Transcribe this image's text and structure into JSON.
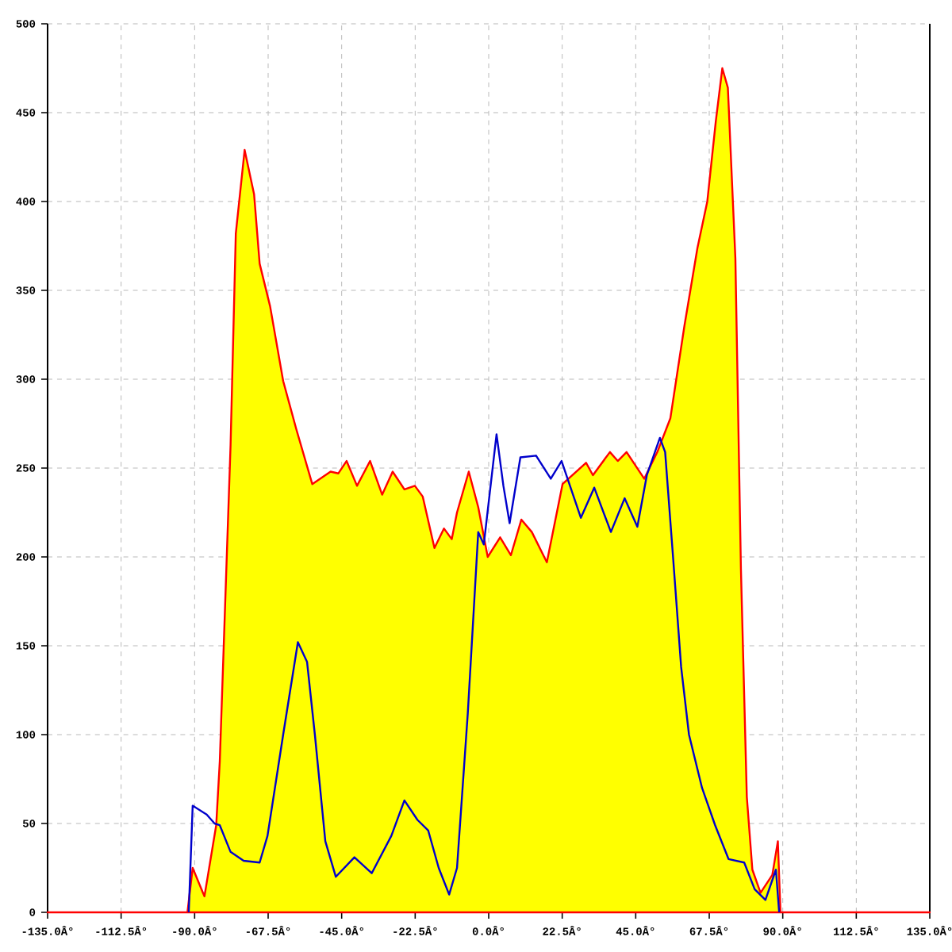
{
  "chart_data": {
    "type": "area",
    "xlim": [
      -135,
      135
    ],
    "ylim": [
      0,
      500
    ],
    "xticks": [
      {
        "value": -135,
        "label": "-135.0Â°"
      },
      {
        "value": -112.5,
        "label": "-112.5Â°"
      },
      {
        "value": -90,
        "label": "-90.0Â°"
      },
      {
        "value": -67.5,
        "label": "-67.5Â°"
      },
      {
        "value": -45,
        "label": "-45.0Â°"
      },
      {
        "value": -22.5,
        "label": "-22.5Â°"
      },
      {
        "value": 0,
        "label": "0.0Â°"
      },
      {
        "value": 22.5,
        "label": "22.5Â°"
      },
      {
        "value": 45,
        "label": "45.0Â°"
      },
      {
        "value": 67.5,
        "label": "67.5Â°"
      },
      {
        "value": 90,
        "label": "90.0Â°"
      },
      {
        "value": 112.5,
        "label": "112.5Â°"
      },
      {
        "value": 135,
        "label": "135.0Â°"
      }
    ],
    "yticks": [
      0,
      50,
      100,
      150,
      200,
      250,
      300,
      350,
      400,
      450,
      500
    ],
    "grid": true,
    "series": [
      {
        "color": "#ffff00",
        "x": [
          -135,
          -92.2,
          -90.6,
          -87,
          -83.4,
          -82.3,
          -79,
          -77.4,
          -74.7,
          -71.8,
          -70.1,
          -66.9,
          -62.9,
          -58.9,
          -54,
          -48.4,
          -46,
          -43.5,
          -40.3,
          -36.3,
          -32.6,
          -29.4,
          -25.8,
          -22.6,
          -20.2,
          -16.6,
          -13.7,
          -11.3,
          -9.7,
          -6.1,
          -3.2,
          -0.3,
          3.5,
          6.8,
          10,
          13.2,
          17.8,
          22.6,
          29.8,
          31.9,
          37.1,
          39.5,
          42.2,
          47.6,
          51.6,
          55.6,
          59.9,
          63.9,
          66.9,
          69.5,
          71.5,
          73.2,
          75.5,
          77.2,
          79,
          80.7,
          83.2,
          86.8,
          88.5,
          89.3,
          135
        ],
        "values": [
          0,
          0,
          25,
          9,
          49,
          85,
          263,
          382,
          429,
          404,
          365,
          341,
          299,
          272,
          241,
          248,
          247,
          254,
          240,
          254,
          235,
          248,
          238,
          240,
          234,
          205,
          216,
          210,
          225,
          248,
          228,
          200,
          211,
          201,
          221,
          214,
          197,
          241,
          253,
          246,
          259,
          254,
          259,
          244,
          259,
          278,
          330,
          374,
          400,
          445,
          475,
          464,
          368,
          193,
          65,
          24,
          11,
          21,
          40,
          0,
          0
        ]
      },
      {
        "type": "line",
        "color": "#0000cc",
        "x": [
          -91.8,
          -90.6,
          -86.3,
          -83.9,
          -82.3,
          -79,
          -75,
          -70.1,
          -67.7,
          -62.9,
          -58.4,
          -55.6,
          -53.2,
          -50,
          -46.8,
          -41.1,
          -35.8,
          -29.8,
          -25.8,
          -21.8,
          -18.5,
          -15.3,
          -12.1,
          -9.7,
          -6.4,
          -3.2,
          -1.5,
          2.4,
          4.5,
          6.4,
          9.7,
          14.5,
          19,
          22.3,
          28.2,
          32.3,
          37.4,
          41.6,
          45.5,
          48.4,
          52.4,
          54,
          56.5,
          58.9,
          61.3,
          65.3,
          69.3,
          73.4,
          78.2,
          81.4,
          84.7,
          87.9,
          88.9
        ],
        "values": [
          0,
          60,
          55,
          50,
          49,
          34,
          29,
          28,
          43,
          100,
          152,
          141,
          100,
          40,
          20,
          31,
          22,
          43,
          63,
          52,
          46,
          25,
          10,
          25,
          112,
          214,
          207,
          269,
          240,
          219,
          256,
          257,
          244,
          254,
          222,
          239,
          214,
          233,
          217,
          246,
          267,
          259,
          198,
          138,
          100,
          70,
          49,
          30,
          28,
          13,
          7,
          24,
          0
        ]
      }
    ]
  }
}
